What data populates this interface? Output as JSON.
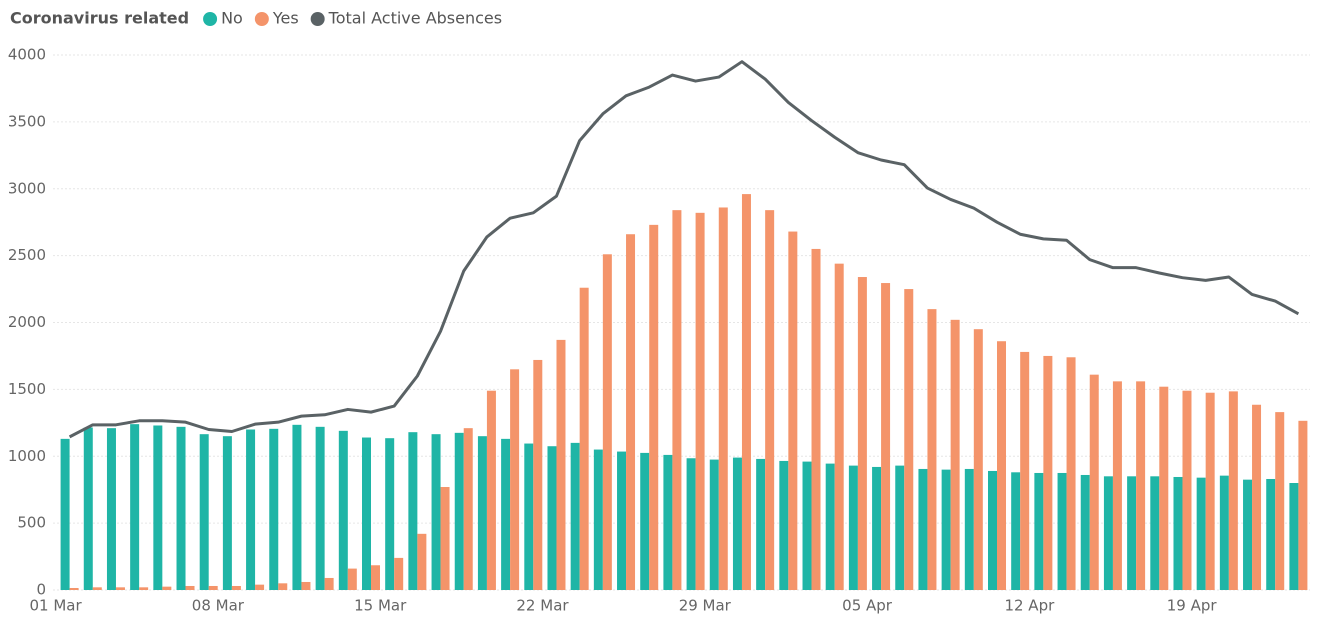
{
  "chart_data": {
    "type": "bar_line",
    "legend_title": "Coronavirus related",
    "categories": [
      "01 Mar",
      null,
      null,
      null,
      null,
      null,
      null,
      "08 Mar",
      null,
      null,
      null,
      null,
      null,
      null,
      "15 Mar",
      null,
      null,
      null,
      null,
      null,
      null,
      "22 Mar",
      null,
      null,
      null,
      null,
      null,
      null,
      "29 Mar",
      null,
      null,
      null,
      null,
      null,
      null,
      "05 Apr",
      null,
      null,
      null,
      null,
      null,
      null,
      "12 Apr",
      null,
      null,
      null,
      null,
      null,
      null,
      "19 Apr",
      null,
      null,
      null,
      null
    ],
    "series": [
      {
        "name": "No",
        "color": "#1fb5a6",
        "kind": "bar",
        "values": [
          1130,
          1215,
          1210,
          1240,
          1230,
          1220,
          1165,
          1150,
          1200,
          1205,
          1235,
          1220,
          1190,
          1140,
          1135,
          1180,
          1165,
          1175,
          1150,
          1130,
          1095,
          1075,
          1100,
          1050,
          1035,
          1025,
          1010,
          985,
          975,
          990,
          980,
          965,
          960,
          945,
          930,
          920,
          930,
          905,
          900,
          905,
          890,
          880,
          875,
          875,
          860,
          850,
          850,
          850,
          845,
          840,
          855,
          825,
          830,
          800
        ]
      },
      {
        "name": "Yes",
        "color": "#f4946a",
        "kind": "bar",
        "values": [
          15,
          20,
          20,
          20,
          25,
          30,
          30,
          30,
          40,
          50,
          60,
          90,
          160,
          185,
          240,
          420,
          770,
          1210,
          1490,
          1650,
          1720,
          1870,
          2260,
          2510,
          2660,
          2730,
          2840,
          2820,
          2860,
          2960,
          2840,
          2680,
          2550,
          2440,
          2340,
          2295,
          2250,
          2100,
          2020,
          1950,
          1860,
          1780,
          1750,
          1740,
          1610,
          1560,
          1560,
          1520,
          1490,
          1475,
          1485,
          1385,
          1330,
          1265
        ]
      },
      {
        "name": "Total Active Absences",
        "color": "#5a6265",
        "kind": "line",
        "values": [
          1145,
          1235,
          1235,
          1265,
          1265,
          1255,
          1200,
          1185,
          1240,
          1255,
          1300,
          1310,
          1350,
          1330,
          1375,
          1600,
          1935,
          2385,
          2640,
          2780,
          2820,
          2945,
          3360,
          3560,
          3695,
          3760,
          3850,
          3805,
          3835,
          3950,
          3820,
          3645,
          3510,
          3385,
          3270,
          3215,
          3180,
          3005,
          2920,
          2855,
          2750,
          2660,
          2625,
          2615,
          2470,
          2410,
          2410,
          2370,
          2335,
          2315,
          2340,
          2210,
          2160,
          2065
        ]
      }
    ],
    "ylim": [
      0,
      4000
    ],
    "yticks": [
      0,
      500,
      1000,
      1500,
      2000,
      2500,
      3000,
      3500,
      4000
    ],
    "grid": true
  }
}
